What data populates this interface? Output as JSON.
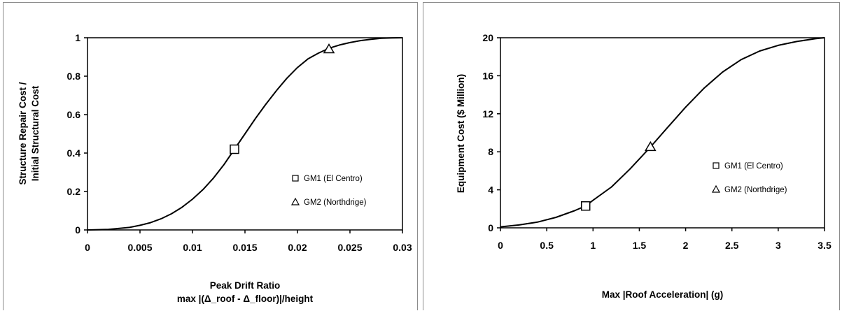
{
  "chart_data": [
    {
      "type": "line",
      "title": "",
      "xlabel": "Peak Drift Ratio",
      "xlabel_line2": "max |(Δ_roof - Δ_floor)|/height",
      "ylabel": "Structure Repair Cost /",
      "ylabel_line2": "Initial Structural Cost",
      "xlim": [
        0,
        0.03
      ],
      "ylim": [
        0,
        1
      ],
      "xticks": [
        0,
        0.005,
        0.01,
        0.015,
        0.02,
        0.025,
        0.03
      ],
      "xtick_labels": [
        "0",
        "0.005",
        "0.01",
        "0.015",
        "0.02",
        "0.025",
        "0.03"
      ],
      "yticks": [
        0,
        0.2,
        0.4,
        0.6,
        0.8,
        1
      ],
      "ytick_labels": [
        "0",
        "0.2",
        "0.4",
        "0.6",
        "0.8",
        "1"
      ],
      "grid": false,
      "curve": {
        "x": [
          0,
          0.002,
          0.004,
          0.005,
          0.006,
          0.007,
          0.008,
          0.009,
          0.01,
          0.011,
          0.012,
          0.013,
          0.014,
          0.015,
          0.016,
          0.017,
          0.018,
          0.019,
          0.02,
          0.021,
          0.022,
          0.023,
          0.024,
          0.025,
          0.026,
          0.027,
          0.028,
          0.029,
          0.03
        ],
        "y": [
          0,
          0.003,
          0.013,
          0.024,
          0.038,
          0.058,
          0.084,
          0.118,
          0.16,
          0.21,
          0.27,
          0.34,
          0.42,
          0.5,
          0.58,
          0.655,
          0.725,
          0.79,
          0.845,
          0.89,
          0.92,
          0.945,
          0.962,
          0.975,
          0.985,
          0.992,
          0.997,
          0.999,
          1.0
        ]
      },
      "points": [
        {
          "name": "GM1 (El Centro)",
          "marker": "square",
          "x": 0.014,
          "y": 0.42
        },
        {
          "name": "GM2 (Northdrige)",
          "marker": "triangle",
          "x": 0.023,
          "y": 0.94
        }
      ],
      "legend": {
        "position": "lower-right",
        "entries": [
          {
            "label": "GM1 (El Centro)",
            "marker": "square"
          },
          {
            "label": "GM2 (Northdrige)",
            "marker": "triangle"
          }
        ]
      }
    },
    {
      "type": "line",
      "title": "",
      "xlabel": "Max |Roof Acceleration| (g)",
      "ylabel": "Equipment Cost ($ Million)",
      "xlim": [
        0,
        3.5
      ],
      "ylim": [
        0,
        20
      ],
      "xticks": [
        0,
        0.5,
        1,
        1.5,
        2,
        2.5,
        3,
        3.5
      ],
      "xtick_labels": [
        "0",
        "0.5",
        "1",
        "1.5",
        "2",
        "2.5",
        "3",
        "3.5"
      ],
      "yticks": [
        0,
        4,
        8,
        12,
        16,
        20
      ],
      "ytick_labels": [
        "0",
        "4",
        "8",
        "12",
        "16",
        "20"
      ],
      "grid": false,
      "curve": {
        "x": [
          0,
          0.2,
          0.4,
          0.6,
          0.8,
          0.92,
          1.0,
          1.2,
          1.4,
          1.62,
          1.8,
          2.0,
          2.2,
          2.4,
          2.6,
          2.8,
          3.0,
          3.2,
          3.4,
          3.5
        ],
        "y": [
          0.1,
          0.3,
          0.6,
          1.1,
          1.8,
          2.3,
          2.9,
          4.3,
          6.2,
          8.5,
          10.5,
          12.7,
          14.7,
          16.4,
          17.7,
          18.6,
          19.2,
          19.6,
          19.9,
          20.0
        ]
      },
      "points": [
        {
          "name": "GM1 (El Centro)",
          "marker": "square",
          "x": 0.92,
          "y": 2.3
        },
        {
          "name": "GM2 (Northdrige)",
          "marker": "triangle",
          "x": 1.62,
          "y": 8.5
        }
      ],
      "legend": {
        "position": "lower-right",
        "entries": [
          {
            "label": "GM1 (El Centro)",
            "marker": "square"
          },
          {
            "label": "GM2 (Northdrige)",
            "marker": "triangle"
          }
        ]
      }
    }
  ]
}
